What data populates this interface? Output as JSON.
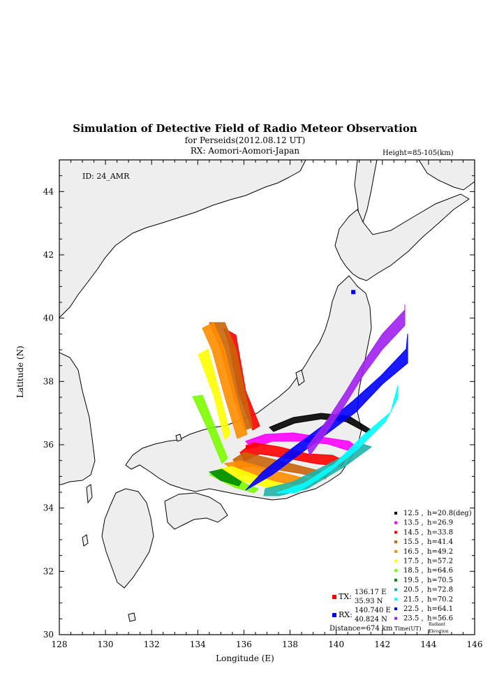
{
  "header": {
    "title": "Simulation of Detective Field of Radio Meteor Observation",
    "subtitle1": "for Perseids(2012.08.12 UT)",
    "subtitle2": "RX: Aomori-Aomori-Japan",
    "height_range": "Height=85-105(km)"
  },
  "map": {
    "id_label": "ID: 24_AMR",
    "xlabel": "Longitude (E)",
    "ylabel": "Latitude (N)",
    "x_range": [
      128,
      146
    ],
    "y_range": [
      30,
      45
    ],
    "x_ticks": [
      "128",
      "130",
      "132",
      "134",
      "136",
      "138",
      "140",
      "142",
      "144",
      "146"
    ],
    "y_ticks": [
      "30",
      "32",
      "34",
      "36",
      "38",
      "40",
      "42",
      "44"
    ],
    "land_color": "#eeeeee",
    "coast_color": "#000000"
  },
  "stations": {
    "tx": {
      "label": "TX:",
      "lon_text": "136.17 E",
      "lat_text": "35.93 N",
      "lon": 136.17,
      "lat": 35.93,
      "color": "#ff0000"
    },
    "rx": {
      "label": "RX:",
      "lon_text": "140.740 E",
      "lat_text": "40.824 N",
      "lon": 140.74,
      "lat": 40.824,
      "color": "#0000ff"
    },
    "distance": "Distance=674 km"
  },
  "legend": {
    "footer_time": "Time(UT)",
    "footer_radiant": "Radiant",
    "footer_elevation": "Elevation",
    "entries": [
      {
        "time": "12.5",
        "h": "h=20.8(deg)",
        "color": "#000000"
      },
      {
        "time": "13.5",
        "h": "h=26.9",
        "color": "#ff00ff"
      },
      {
        "time": "14.5",
        "h": "h=33.8",
        "color": "#ff0000"
      },
      {
        "time": "15.5",
        "h": "h=41.4",
        "color": "#c8640a"
      },
      {
        "time": "16.5",
        "h": "h=49.2",
        "color": "#ff8c00"
      },
      {
        "time": "17.5",
        "h": "h=57.2",
        "color": "#ffff00"
      },
      {
        "time": "18.5",
        "h": "h=64.6",
        "color": "#7cfc00"
      },
      {
        "time": "19.5",
        "h": "h=70.5",
        "color": "#008c00"
      },
      {
        "time": "20.5",
        "h": "h=72.8",
        "color": "#20b2aa"
      },
      {
        "time": "21.5",
        "h": "h=70.2",
        "color": "#00ffff"
      },
      {
        "time": "22.5",
        "h": "h=64.1",
        "color": "#0000ff"
      },
      {
        "time": "23.5",
        "h": "h=56.6",
        "color": "#a020f0"
      }
    ]
  }
}
